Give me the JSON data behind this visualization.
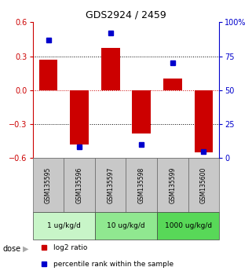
{
  "title": "GDS2924 / 2459",
  "samples": [
    "GSM135595",
    "GSM135596",
    "GSM135597",
    "GSM135598",
    "GSM135599",
    "GSM135600"
  ],
  "log2_ratio": [
    0.27,
    -0.48,
    0.37,
    -0.38,
    0.1,
    -0.55
  ],
  "percentile_rank": [
    87,
    8,
    92,
    10,
    70,
    5
  ],
  "ylim_left": [
    -0.6,
    0.6
  ],
  "ylim_right": [
    0,
    100
  ],
  "yticks_left": [
    -0.6,
    -0.3,
    0,
    0.3,
    0.6
  ],
  "yticks_right": [
    0,
    25,
    50,
    75,
    100
  ],
  "ytick_labels_right": [
    "0",
    "25",
    "50",
    "75",
    "100%"
  ],
  "dose_groups": [
    {
      "label": "1 ug/kg/d",
      "samples": [
        0,
        1
      ],
      "color": "#c8f5c8"
    },
    {
      "label": "10 ug/kg/d",
      "samples": [
        2,
        3
      ],
      "color": "#90e890"
    },
    {
      "label": "1000 ug/kg/d",
      "samples": [
        4,
        5
      ],
      "color": "#58d858"
    }
  ],
  "bar_color": "#cc0000",
  "dot_color": "#0000cc",
  "grid_color": "#000000",
  "zero_line_color": "#cc0000",
  "sample_bg_color": "#c8c8c8",
  "legend_bar_label": "log2 ratio",
  "legend_dot_label": "percentile rank within the sample",
  "dose_label": "dose",
  "left_axis_color": "#cc0000",
  "right_axis_color": "#0000cc"
}
